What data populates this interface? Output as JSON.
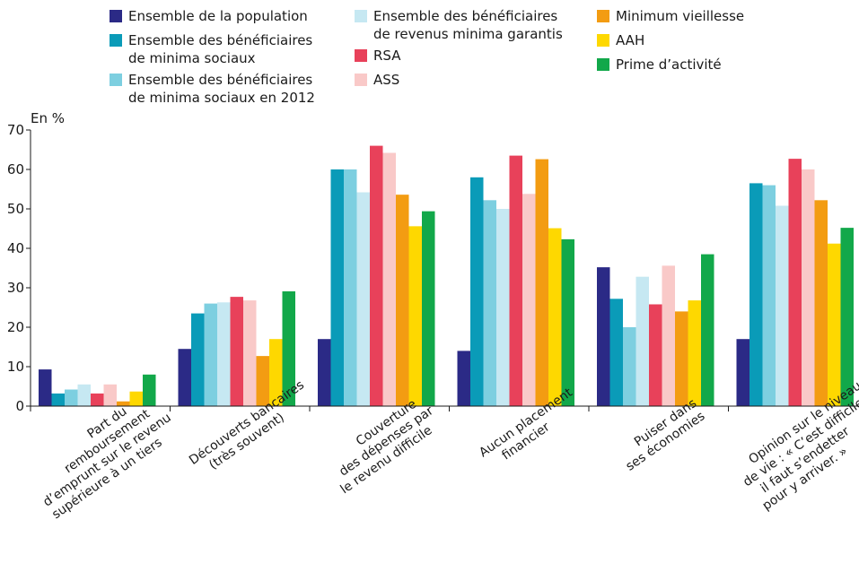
{
  "chart_data": {
    "type": "bar",
    "ylabel": "En %",
    "ylim": [
      0,
      70
    ],
    "yticks": [
      0,
      10,
      20,
      30,
      40,
      50,
      60,
      70
    ],
    "grid": false,
    "legend_position": "top",
    "categories": [
      "Part du\nremboursement\nd’emprunt sur le revenu\nsupérieure à un tiers",
      "Découverts bancaires\n(très souvent)",
      "Couverture\ndes dépenses par\nle revenu difficile",
      "Aucun placement\nfinancier",
      "Puiser dans\nses économies",
      "Opinion sur le niveau\nde vie : « C’est difficile,\nil faut s’endetter\npour y arriver. »"
    ],
    "series": [
      {
        "name": "Ensemble de la population",
        "color": "#2b2a86",
        "values": [
          9.3,
          14.5,
          17,
          14,
          35.2,
          17
        ]
      },
      {
        "name": "Ensemble des bénéficiaires\nde minima sociaux",
        "color": "#0a9bb8",
        "values": [
          3.2,
          23.5,
          60,
          58,
          27.2,
          56.5
        ]
      },
      {
        "name": "Ensemble des bénéficiaires\nde minima sociaux en 2012",
        "color": "#7dcfe0",
        "values": [
          4.2,
          26,
          60,
          52.2,
          20,
          56
        ]
      },
      {
        "name": "Ensemble des bénéficiaires\nde revenus minima garantis",
        "color": "#c6e8f2",
        "values": [
          5.5,
          26.3,
          54.2,
          50,
          32.8,
          50.8
        ]
      },
      {
        "name": "RSA",
        "color": "#e8415a",
        "values": [
          3.2,
          27.7,
          66,
          63.5,
          25.8,
          62.7
        ]
      },
      {
        "name": "ASS",
        "color": "#f9c9c8",
        "values": [
          5.5,
          26.8,
          64.2,
          53.8,
          35.6,
          60
        ]
      },
      {
        "name": "Minimum vieillesse",
        "color": "#f39c12",
        "values": [
          1.2,
          12.7,
          53.6,
          62.6,
          24,
          52.2
        ]
      },
      {
        "name": "AAH",
        "color": "#fed800",
        "values": [
          3.7,
          17,
          45.6,
          45.1,
          26.8,
          41.2
        ]
      },
      {
        "name": "Prime d’activité",
        "color": "#12a84a",
        "values": [
          8,
          29.1,
          49.4,
          42.3,
          38.5,
          45.2
        ]
      }
    ]
  }
}
